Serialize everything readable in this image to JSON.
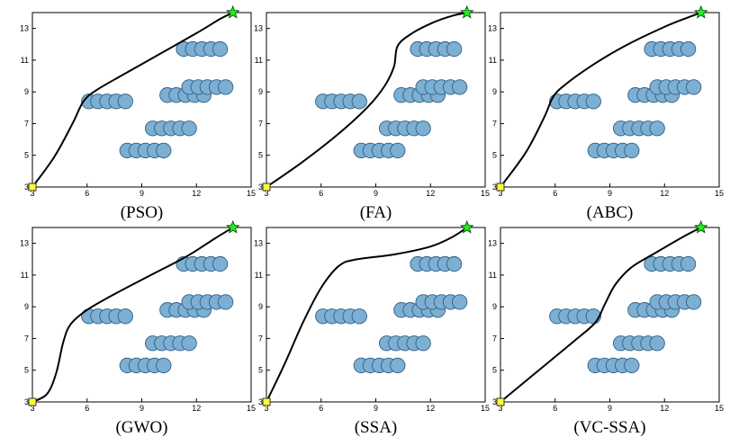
{
  "figure": {
    "panel_captions": [
      "(PSO)",
      "(FA)",
      "(ABC)",
      "(GWO)",
      "(SSA)",
      "(VC-SSA)"
    ]
  },
  "chart_data": [
    {
      "type": "scatter",
      "title": "(PSO)",
      "xlim": [
        3,
        15
      ],
      "ylim": [
        3,
        14
      ],
      "xticks": [
        "3",
        "6",
        "9",
        "12",
        "15"
      ],
      "yticks": [
        "3",
        "5",
        "7",
        "9",
        "11",
        "13"
      ],
      "grid": false,
      "start": {
        "x": 3,
        "y": 3,
        "marker": "yellow-square"
      },
      "goal": {
        "x": 14,
        "y": 14,
        "marker": "green-star"
      },
      "obstacles": [
        {
          "x": 6.1,
          "y": 8.4
        },
        {
          "x": 6.6,
          "y": 8.4
        },
        {
          "x": 7.1,
          "y": 8.4
        },
        {
          "x": 7.6,
          "y": 8.4
        },
        {
          "x": 8.1,
          "y": 8.4
        },
        {
          "x": 8.2,
          "y": 5.3
        },
        {
          "x": 8.7,
          "y": 5.3
        },
        {
          "x": 9.2,
          "y": 5.3
        },
        {
          "x": 9.7,
          "y": 5.3
        },
        {
          "x": 10.2,
          "y": 5.3
        },
        {
          "x": 9.6,
          "y": 6.7
        },
        {
          "x": 10.1,
          "y": 6.7
        },
        {
          "x": 10.6,
          "y": 6.7
        },
        {
          "x": 11.1,
          "y": 6.7
        },
        {
          "x": 11.6,
          "y": 6.7
        },
        {
          "x": 10.4,
          "y": 8.8
        },
        {
          "x": 10.9,
          "y": 8.8
        },
        {
          "x": 11.4,
          "y": 8.8
        },
        {
          "x": 11.9,
          "y": 8.8
        },
        {
          "x": 12.4,
          "y": 8.8
        },
        {
          "x": 11.6,
          "y": 9.3
        },
        {
          "x": 12.1,
          "y": 9.3
        },
        {
          "x": 12.6,
          "y": 9.3
        },
        {
          "x": 13.1,
          "y": 9.3
        },
        {
          "x": 13.6,
          "y": 9.3
        },
        {
          "x": 11.3,
          "y": 11.7
        },
        {
          "x": 11.8,
          "y": 11.7
        },
        {
          "x": 12.3,
          "y": 11.7
        },
        {
          "x": 12.8,
          "y": 11.7
        },
        {
          "x": 13.3,
          "y": 11.7
        }
      ],
      "path": [
        {
          "x": 3,
          "y": 3
        },
        {
          "x": 4.2,
          "y": 4.9
        },
        {
          "x": 5.2,
          "y": 7
        },
        {
          "x": 5.8,
          "y": 8.4
        },
        {
          "x": 6.5,
          "y": 9.1
        },
        {
          "x": 8,
          "y": 10.1
        },
        {
          "x": 10,
          "y": 11.4
        },
        {
          "x": 12,
          "y": 12.7
        },
        {
          "x": 13.3,
          "y": 13.6
        },
        {
          "x": 14,
          "y": 14
        }
      ]
    },
    {
      "type": "scatter",
      "title": "(FA)",
      "xlim": [
        3,
        15
      ],
      "ylim": [
        3,
        14
      ],
      "xticks": [
        "3",
        "6",
        "9",
        "12",
        "15"
      ],
      "yticks": [
        "3",
        "5",
        "7",
        "9",
        "11",
        "13"
      ],
      "grid": false,
      "start": {
        "x": 3,
        "y": 3,
        "marker": "yellow-square"
      },
      "goal": {
        "x": 14,
        "y": 14,
        "marker": "green-star"
      },
      "obstacles": [
        {
          "x": 6.1,
          "y": 8.4
        },
        {
          "x": 6.6,
          "y": 8.4
        },
        {
          "x": 7.1,
          "y": 8.4
        },
        {
          "x": 7.6,
          "y": 8.4
        },
        {
          "x": 8.1,
          "y": 8.4
        },
        {
          "x": 8.2,
          "y": 5.3
        },
        {
          "x": 8.7,
          "y": 5.3
        },
        {
          "x": 9.2,
          "y": 5.3
        },
        {
          "x": 9.7,
          "y": 5.3
        },
        {
          "x": 10.2,
          "y": 5.3
        },
        {
          "x": 9.6,
          "y": 6.7
        },
        {
          "x": 10.1,
          "y": 6.7
        },
        {
          "x": 10.6,
          "y": 6.7
        },
        {
          "x": 11.1,
          "y": 6.7
        },
        {
          "x": 11.6,
          "y": 6.7
        },
        {
          "x": 10.4,
          "y": 8.8
        },
        {
          "x": 10.9,
          "y": 8.8
        },
        {
          "x": 11.4,
          "y": 8.8
        },
        {
          "x": 11.9,
          "y": 8.8
        },
        {
          "x": 12.4,
          "y": 8.8
        },
        {
          "x": 11.6,
          "y": 9.3
        },
        {
          "x": 12.1,
          "y": 9.3
        },
        {
          "x": 12.6,
          "y": 9.3
        },
        {
          "x": 13.1,
          "y": 9.3
        },
        {
          "x": 13.6,
          "y": 9.3
        },
        {
          "x": 11.3,
          "y": 11.7
        },
        {
          "x": 11.8,
          "y": 11.7
        },
        {
          "x": 12.3,
          "y": 11.7
        },
        {
          "x": 12.8,
          "y": 11.7
        },
        {
          "x": 13.3,
          "y": 11.7
        }
      ],
      "path": [
        {
          "x": 3,
          "y": 3
        },
        {
          "x": 5,
          "y": 4.6
        },
        {
          "x": 7,
          "y": 6.4
        },
        {
          "x": 8.6,
          "y": 8.1
        },
        {
          "x": 9.5,
          "y": 9.4
        },
        {
          "x": 10,
          "y": 10.6
        },
        {
          "x": 10.2,
          "y": 11.9
        },
        {
          "x": 11,
          "y": 12.7
        },
        {
          "x": 12.2,
          "y": 13.4
        },
        {
          "x": 13.2,
          "y": 13.8
        },
        {
          "x": 14,
          "y": 14
        }
      ]
    },
    {
      "type": "scatter",
      "title": "(ABC)",
      "xlim": [
        3,
        15
      ],
      "ylim": [
        3,
        14
      ],
      "xticks": [
        "3",
        "6",
        "9",
        "12",
        "15"
      ],
      "yticks": [
        "3",
        "5",
        "7",
        "9",
        "11",
        "13"
      ],
      "grid": false,
      "start": {
        "x": 3,
        "y": 3,
        "marker": "yellow-square"
      },
      "goal": {
        "x": 14,
        "y": 14,
        "marker": "green-star"
      },
      "obstacles": [
        {
          "x": 6.1,
          "y": 8.4
        },
        {
          "x": 6.6,
          "y": 8.4
        },
        {
          "x": 7.1,
          "y": 8.4
        },
        {
          "x": 7.6,
          "y": 8.4
        },
        {
          "x": 8.1,
          "y": 8.4
        },
        {
          "x": 8.2,
          "y": 5.3
        },
        {
          "x": 8.7,
          "y": 5.3
        },
        {
          "x": 9.2,
          "y": 5.3
        },
        {
          "x": 9.7,
          "y": 5.3
        },
        {
          "x": 10.2,
          "y": 5.3
        },
        {
          "x": 9.6,
          "y": 6.7
        },
        {
          "x": 10.1,
          "y": 6.7
        },
        {
          "x": 10.6,
          "y": 6.7
        },
        {
          "x": 11.1,
          "y": 6.7
        },
        {
          "x": 11.6,
          "y": 6.7
        },
        {
          "x": 10.4,
          "y": 8.8
        },
        {
          "x": 10.9,
          "y": 8.8
        },
        {
          "x": 11.4,
          "y": 8.8
        },
        {
          "x": 11.9,
          "y": 8.8
        },
        {
          "x": 12.4,
          "y": 8.8
        },
        {
          "x": 11.6,
          "y": 9.3
        },
        {
          "x": 12.1,
          "y": 9.3
        },
        {
          "x": 12.6,
          "y": 9.3
        },
        {
          "x": 13.1,
          "y": 9.3
        },
        {
          "x": 13.6,
          "y": 9.3
        },
        {
          "x": 11.3,
          "y": 11.7
        },
        {
          "x": 11.8,
          "y": 11.7
        },
        {
          "x": 12.3,
          "y": 11.7
        },
        {
          "x": 12.8,
          "y": 11.7
        },
        {
          "x": 13.3,
          "y": 11.7
        }
      ],
      "path": [
        {
          "x": 3,
          "y": 3
        },
        {
          "x": 4.4,
          "y": 5.2
        },
        {
          "x": 5.4,
          "y": 7.4
        },
        {
          "x": 5.9,
          "y": 8.7
        },
        {
          "x": 6.6,
          "y": 9.5
        },
        {
          "x": 8.2,
          "y": 10.8
        },
        {
          "x": 10,
          "y": 12
        },
        {
          "x": 12,
          "y": 13.1
        },
        {
          "x": 13.3,
          "y": 13.7
        },
        {
          "x": 14,
          "y": 14
        }
      ]
    },
    {
      "type": "scatter",
      "title": "(GWO)",
      "xlim": [
        3,
        15
      ],
      "ylim": [
        3,
        14
      ],
      "xticks": [
        "3",
        "6",
        "9",
        "12",
        "15"
      ],
      "yticks": [
        "3",
        "5",
        "7",
        "9",
        "11",
        "13"
      ],
      "grid": false,
      "start": {
        "x": 3,
        "y": 3,
        "marker": "yellow-square"
      },
      "goal": {
        "x": 14,
        "y": 14,
        "marker": "green-star"
      },
      "obstacles": [
        {
          "x": 6.1,
          "y": 8.4
        },
        {
          "x": 6.6,
          "y": 8.4
        },
        {
          "x": 7.1,
          "y": 8.4
        },
        {
          "x": 7.6,
          "y": 8.4
        },
        {
          "x": 8.1,
          "y": 8.4
        },
        {
          "x": 8.2,
          "y": 5.3
        },
        {
          "x": 8.7,
          "y": 5.3
        },
        {
          "x": 9.2,
          "y": 5.3
        },
        {
          "x": 9.7,
          "y": 5.3
        },
        {
          "x": 10.2,
          "y": 5.3
        },
        {
          "x": 9.6,
          "y": 6.7
        },
        {
          "x": 10.1,
          "y": 6.7
        },
        {
          "x": 10.6,
          "y": 6.7
        },
        {
          "x": 11.1,
          "y": 6.7
        },
        {
          "x": 11.6,
          "y": 6.7
        },
        {
          "x": 10.4,
          "y": 8.8
        },
        {
          "x": 10.9,
          "y": 8.8
        },
        {
          "x": 11.4,
          "y": 8.8
        },
        {
          "x": 11.9,
          "y": 8.8
        },
        {
          "x": 12.4,
          "y": 8.8
        },
        {
          "x": 11.6,
          "y": 9.3
        },
        {
          "x": 12.1,
          "y": 9.3
        },
        {
          "x": 12.6,
          "y": 9.3
        },
        {
          "x": 13.1,
          "y": 9.3
        },
        {
          "x": 13.6,
          "y": 9.3
        },
        {
          "x": 11.3,
          "y": 11.7
        },
        {
          "x": 11.8,
          "y": 11.7
        },
        {
          "x": 12.3,
          "y": 11.7
        },
        {
          "x": 12.8,
          "y": 11.7
        },
        {
          "x": 13.3,
          "y": 11.7
        }
      ],
      "path": [
        {
          "x": 3,
          "y": 3
        },
        {
          "x": 3.8,
          "y": 3.5
        },
        {
          "x": 4.3,
          "y": 4.8
        },
        {
          "x": 4.7,
          "y": 6.8
        },
        {
          "x": 5.1,
          "y": 7.9
        },
        {
          "x": 6,
          "y": 8.8
        },
        {
          "x": 7.5,
          "y": 9.8
        },
        {
          "x": 9.5,
          "y": 11
        },
        {
          "x": 11.5,
          "y": 12.2
        },
        {
          "x": 13,
          "y": 13.3
        },
        {
          "x": 14,
          "y": 14
        }
      ]
    },
    {
      "type": "scatter",
      "title": "(SSA)",
      "xlim": [
        3,
        15
      ],
      "ylim": [
        3,
        14
      ],
      "xticks": [
        "3",
        "6",
        "9",
        "12",
        "15"
      ],
      "yticks": [
        "3",
        "5",
        "7",
        "9",
        "11",
        "13"
      ],
      "grid": false,
      "start": {
        "x": 3,
        "y": 3,
        "marker": "yellow-square"
      },
      "goal": {
        "x": 14,
        "y": 14,
        "marker": "green-star"
      },
      "obstacles": [
        {
          "x": 6.1,
          "y": 8.4
        },
        {
          "x": 6.6,
          "y": 8.4
        },
        {
          "x": 7.1,
          "y": 8.4
        },
        {
          "x": 7.6,
          "y": 8.4
        },
        {
          "x": 8.1,
          "y": 8.4
        },
        {
          "x": 8.2,
          "y": 5.3
        },
        {
          "x": 8.7,
          "y": 5.3
        },
        {
          "x": 9.2,
          "y": 5.3
        },
        {
          "x": 9.7,
          "y": 5.3
        },
        {
          "x": 10.2,
          "y": 5.3
        },
        {
          "x": 9.6,
          "y": 6.7
        },
        {
          "x": 10.1,
          "y": 6.7
        },
        {
          "x": 10.6,
          "y": 6.7
        },
        {
          "x": 11.1,
          "y": 6.7
        },
        {
          "x": 11.6,
          "y": 6.7
        },
        {
          "x": 10.4,
          "y": 8.8
        },
        {
          "x": 10.9,
          "y": 8.8
        },
        {
          "x": 11.4,
          "y": 8.8
        },
        {
          "x": 11.9,
          "y": 8.8
        },
        {
          "x": 12.4,
          "y": 8.8
        },
        {
          "x": 11.6,
          "y": 9.3
        },
        {
          "x": 12.1,
          "y": 9.3
        },
        {
          "x": 12.6,
          "y": 9.3
        },
        {
          "x": 13.1,
          "y": 9.3
        },
        {
          "x": 13.6,
          "y": 9.3
        },
        {
          "x": 11.3,
          "y": 11.7
        },
        {
          "x": 11.8,
          "y": 11.7
        },
        {
          "x": 12.3,
          "y": 11.7
        },
        {
          "x": 12.8,
          "y": 11.7
        },
        {
          "x": 13.3,
          "y": 11.7
        }
      ],
      "path": [
        {
          "x": 3,
          "y": 3
        },
        {
          "x": 4,
          "y": 5.4
        },
        {
          "x": 5,
          "y": 8
        },
        {
          "x": 6,
          "y": 10.2
        },
        {
          "x": 7,
          "y": 11.6
        },
        {
          "x": 8,
          "y": 12
        },
        {
          "x": 10,
          "y": 12.3
        },
        {
          "x": 12,
          "y": 12.8
        },
        {
          "x": 13.2,
          "y": 13.4
        },
        {
          "x": 14,
          "y": 14
        }
      ]
    },
    {
      "type": "scatter",
      "title": "(VC-SSA)",
      "xlim": [
        3,
        15
      ],
      "ylim": [
        3,
        14
      ],
      "xticks": [
        "3",
        "6",
        "9",
        "12",
        "15"
      ],
      "yticks": [
        "3",
        "5",
        "7",
        "9",
        "11",
        "13"
      ],
      "grid": false,
      "start": {
        "x": 3,
        "y": 3,
        "marker": "yellow-square"
      },
      "goal": {
        "x": 14,
        "y": 14,
        "marker": "green-star"
      },
      "obstacles": [
        {
          "x": 6.1,
          "y": 8.4
        },
        {
          "x": 6.6,
          "y": 8.4
        },
        {
          "x": 7.1,
          "y": 8.4
        },
        {
          "x": 7.6,
          "y": 8.4
        },
        {
          "x": 8.1,
          "y": 8.4
        },
        {
          "x": 8.2,
          "y": 5.3
        },
        {
          "x": 8.7,
          "y": 5.3
        },
        {
          "x": 9.2,
          "y": 5.3
        },
        {
          "x": 9.7,
          "y": 5.3
        },
        {
          "x": 10.2,
          "y": 5.3
        },
        {
          "x": 9.6,
          "y": 6.7
        },
        {
          "x": 10.1,
          "y": 6.7
        },
        {
          "x": 10.6,
          "y": 6.7
        },
        {
          "x": 11.1,
          "y": 6.7
        },
        {
          "x": 11.6,
          "y": 6.7
        },
        {
          "x": 10.4,
          "y": 8.8
        },
        {
          "x": 10.9,
          "y": 8.8
        },
        {
          "x": 11.4,
          "y": 8.8
        },
        {
          "x": 11.9,
          "y": 8.8
        },
        {
          "x": 12.4,
          "y": 8.8
        },
        {
          "x": 11.6,
          "y": 9.3
        },
        {
          "x": 12.1,
          "y": 9.3
        },
        {
          "x": 12.6,
          "y": 9.3
        },
        {
          "x": 13.1,
          "y": 9.3
        },
        {
          "x": 13.6,
          "y": 9.3
        },
        {
          "x": 11.3,
          "y": 11.7
        },
        {
          "x": 11.8,
          "y": 11.7
        },
        {
          "x": 12.3,
          "y": 11.7
        },
        {
          "x": 12.8,
          "y": 11.7
        },
        {
          "x": 13.3,
          "y": 11.7
        }
      ],
      "path": [
        {
          "x": 3,
          "y": 3
        },
        {
          "x": 5,
          "y": 4.9
        },
        {
          "x": 7,
          "y": 6.8
        },
        {
          "x": 8.2,
          "y": 8
        },
        {
          "x": 8.7,
          "y": 9.1
        },
        {
          "x": 9.3,
          "y": 10.4
        },
        {
          "x": 10.2,
          "y": 11.5
        },
        {
          "x": 11.5,
          "y": 12.4
        },
        {
          "x": 13,
          "y": 13.4
        },
        {
          "x": 14,
          "y": 14
        }
      ]
    }
  ]
}
